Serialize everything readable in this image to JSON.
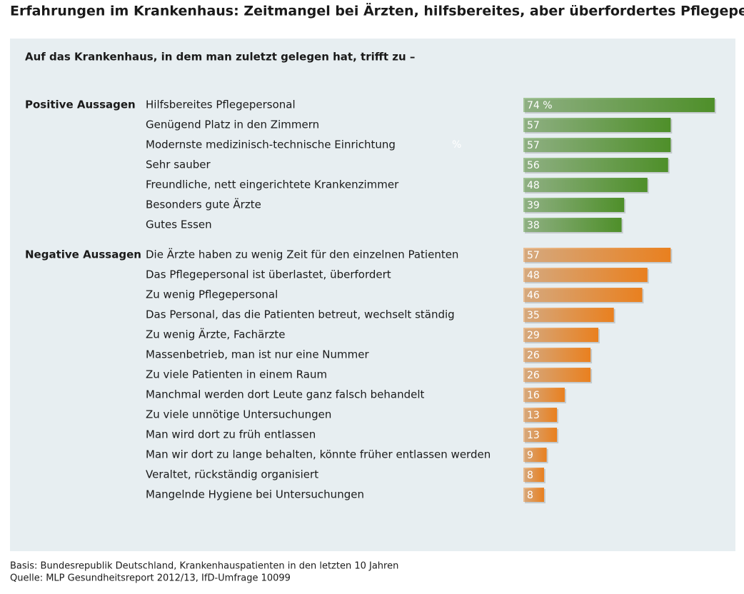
{
  "chart_data": {
    "type": "bar",
    "title": "Erfahrungen im Krankenhaus: Zeitmangel bei Ärzten, hilfsbereites, aber überfordertes Pflegepersonal",
    "subtitle": "Auf das Krankenhaus, in dem man zuletzt gelegen hat, trifft zu –",
    "annotation": "%",
    "groups": [
      {
        "name": "Positive Aussagen",
        "color": "#4e8f29",
        "categories": [
          "Hilfsbereites Pflegepersonal",
          "Genügend Platz in den Zimmern",
          "Modernste medizinisch-technische Einrichtung",
          "Sehr sauber",
          "Freundliche, nett eingerichtete Krankenzimmer",
          "Besonders gute Ärzte",
          "Gutes Essen"
        ],
        "values": [
          74,
          57,
          57,
          56,
          48,
          39,
          38
        ],
        "value_labels": [
          "74 %",
          "57",
          "57",
          "56",
          "48",
          "39",
          "38"
        ]
      },
      {
        "name": "Negative Aussagen",
        "color": "#e9801f",
        "categories": [
          "Die Ärzte haben zu wenig Zeit für den einzelnen Patienten",
          "Das Pflegepersonal ist überlastet, überfordert",
          "Zu wenig Pflegepersonal",
          "Das Personal, das die Patienten betreut, wechselt ständig",
          "Zu wenig Ärzte, Fachärzte",
          "Massenbetrieb, man ist nur eine Nummer",
          "Zu viele Patienten in einem Raum",
          "Manchmal werden dort Leute ganz falsch behandelt",
          "Zu viele unnötige Untersuchungen",
          "Man wird dort zu früh entlassen",
          "Man wir dort zu lange behalten, könnte früher entlassen werden",
          "Veraltet, rückständig organisiert",
          "Mangelnde Hygiene bei Untersuchungen"
        ],
        "values": [
          57,
          48,
          46,
          35,
          29,
          26,
          26,
          16,
          13,
          13,
          9,
          8,
          8
        ]
      }
    ],
    "footnotes": [
      "Basis: Bundesrepublik Deutschland, Krankenhauspatienten in den letzten 10 Jahren",
      "Quelle: MLP Gesundheitsreport 2012/13, IfD-Umfrage 10099"
    ]
  }
}
